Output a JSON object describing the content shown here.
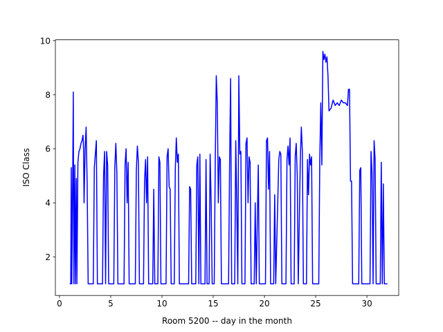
{
  "chart_data": {
    "type": "line",
    "xlabel": "Room 5200 -- day in the month",
    "ylabel": "ISO Class",
    "xlim": [
      -0.4,
      33.1
    ],
    "ylim": [
      0.57,
      10.03
    ],
    "xticks": [
      0,
      5,
      10,
      15,
      20,
      25,
      30
    ],
    "yticks": [
      2,
      4,
      6,
      8,
      10
    ],
    "grid": false,
    "x": [
      1.0,
      1.1,
      1.15,
      1.2,
      1.3,
      1.35,
      1.4,
      1.5,
      1.55,
      1.65,
      1.7,
      1.8,
      1.9,
      2.0,
      2.1,
      2.2,
      2.3,
      2.35,
      2.4,
      2.5,
      2.6,
      2.7,
      2.8,
      3.3,
      3.4,
      3.5,
      3.6,
      3.7,
      4.2,
      4.3,
      4.4,
      4.5,
      4.6,
      4.7,
      4.8,
      5.3,
      5.4,
      5.5,
      5.6,
      5.7,
      6.3,
      6.4,
      6.5,
      6.6,
      6.7,
      6.8,
      7.4,
      7.5,
      7.6,
      7.7,
      7.8,
      8.2,
      8.3,
      8.4,
      8.5,
      8.6,
      8.7,
      9.1,
      9.2,
      9.3,
      9.6,
      9.7,
      9.8,
      9.9,
      10.4,
      10.5,
      10.6,
      10.7,
      10.8,
      10.9,
      11.2,
      11.3,
      11.4,
      11.5,
      11.6,
      11.7,
      12.6,
      12.7,
      12.8,
      12.9,
      13.3,
      13.4,
      13.5,
      13.6,
      13.7,
      13.8,
      14.2,
      14.3,
      14.4,
      14.6,
      14.7,
      14.8,
      14.9,
      15.1,
      15.2,
      15.3,
      15.4,
      15.5,
      15.6,
      15.7,
      15.8,
      16.5,
      16.6,
      16.7,
      16.8,
      17.1,
      17.2,
      17.3,
      17.4,
      17.5,
      17.6,
      17.7,
      17.8,
      18.1,
      18.2,
      18.3,
      18.4,
      18.5,
      18.6,
      18.7,
      19.0,
      19.1,
      19.2,
      19.4,
      19.5,
      20.1,
      20.2,
      20.3,
      20.4,
      20.5,
      20.6,
      20.9,
      21.0,
      21.1,
      21.4,
      21.5,
      21.6,
      21.7,
      22.1,
      22.2,
      22.3,
      22.4,
      22.5,
      22.6,
      22.9,
      23.0,
      23.1,
      23.2,
      23.3,
      23.5,
      23.6,
      23.7,
      23.8,
      24.1,
      24.2,
      24.3,
      24.4,
      24.5,
      24.6,
      24.7,
      25.3,
      25.4,
      25.5,
      25.6,
      25.7,
      25.8,
      25.9,
      26.0,
      26.1,
      26.2,
      26.3,
      26.5,
      26.7,
      26.9,
      27.1,
      27.3,
      27.5,
      27.7,
      27.9,
      28.1,
      28.2,
      28.3,
      28.4,
      28.5,
      28.6,
      29.2,
      29.3,
      29.4,
      29.5,
      30.3,
      30.4,
      30.5,
      30.6,
      30.7,
      30.8,
      30.9,
      31.3,
      31.4,
      31.5,
      31.6,
      31.7,
      32.0
    ],
    "series": [
      {
        "color": "#0000ff",
        "values": [
          1,
          1,
          5.3,
          1,
          5.4,
          8.1,
          1,
          5.4,
          1,
          4.9,
          1,
          5.5,
          5.9,
          6.0,
          6.2,
          6.3,
          6.5,
          6.0,
          4.0,
          6.0,
          6.8,
          4.7,
          1,
          1,
          5.3,
          5.8,
          6.3,
          1,
          1,
          5.0,
          5.9,
          1,
          5.9,
          5.4,
          1,
          1,
          5.3,
          6.2,
          5.1,
          1,
          1,
          5.4,
          6.0,
          4.0,
          5.5,
          1,
          1,
          5.2,
          6.1,
          5.5,
          1,
          1,
          4.8,
          5.6,
          4.0,
          5.7,
          1,
          1,
          4.5,
          1,
          1,
          5.7,
          5.5,
          1,
          1,
          5.7,
          6.0,
          4.6,
          4.5,
          1,
          1,
          5.2,
          6.4,
          5.5,
          5.8,
          1,
          1,
          4.6,
          4.5,
          1,
          1,
          5.4,
          5.7,
          1,
          5.8,
          1,
          1,
          5.6,
          1,
          1,
          5.8,
          4.0,
          1,
          1,
          5.5,
          8.7,
          7.7,
          4.0,
          5.7,
          5.6,
          1,
          1,
          5.5,
          8.6,
          1,
          1,
          6.3,
          4.0,
          1,
          8.7,
          5.8,
          5.9,
          1,
          1,
          6.2,
          6.4,
          4.0,
          5.7,
          5.5,
          1,
          1,
          4.0,
          1,
          5.4,
          1,
          1,
          6.3,
          6.4,
          4.5,
          5.9,
          1,
          1,
          4.3,
          1,
          5.6,
          5.9,
          5.8,
          1,
          1,
          5.6,
          6.1,
          5.4,
          6.4,
          1,
          1,
          5.7,
          6.2,
          5.0,
          1,
          5.6,
          6.8,
          5.9,
          1,
          1,
          5.6,
          4.3,
          5.8,
          5.4,
          5.7,
          1,
          1,
          5.6,
          7.7,
          5.4,
          9.6,
          9.3,
          9.5,
          9.2,
          9.4,
          8.7,
          7.4,
          7.5,
          7.8,
          7.6,
          7.7,
          7.6,
          7.8,
          7.7,
          7.7,
          7.6,
          8.2,
          8.2,
          4.8,
          4.8,
          1,
          1,
          5.2,
          5.3,
          1,
          1,
          5.9,
          5.1,
          1,
          6.3,
          5.6,
          1,
          1,
          5.5,
          1,
          4.7,
          1,
          1
        ]
      }
    ]
  }
}
